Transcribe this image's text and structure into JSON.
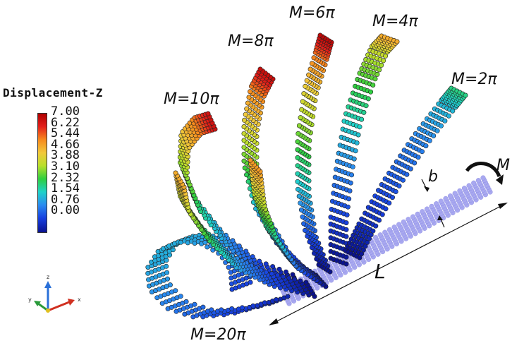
{
  "legend": {
    "title": "Displacement-Z",
    "ticks": [
      "7.00",
      "6.22",
      "5.44",
      "4.66",
      "3.88",
      "3.10",
      "2.32",
      "1.54",
      "0.76",
      "0.00"
    ]
  },
  "labels": {
    "m2": "M=2π",
    "m4": "M=4π",
    "m6": "M=6π",
    "m8": "M=8π",
    "m10": "M=10π",
    "m20": "M=20π",
    "moment": "M",
    "width": "b",
    "length": "L"
  },
  "triad": {
    "x": "x",
    "y": "y",
    "z": "z"
  },
  "colors": {
    "flat_ribbon": "#a8a8f0",
    "arrow": "#111111"
  }
}
